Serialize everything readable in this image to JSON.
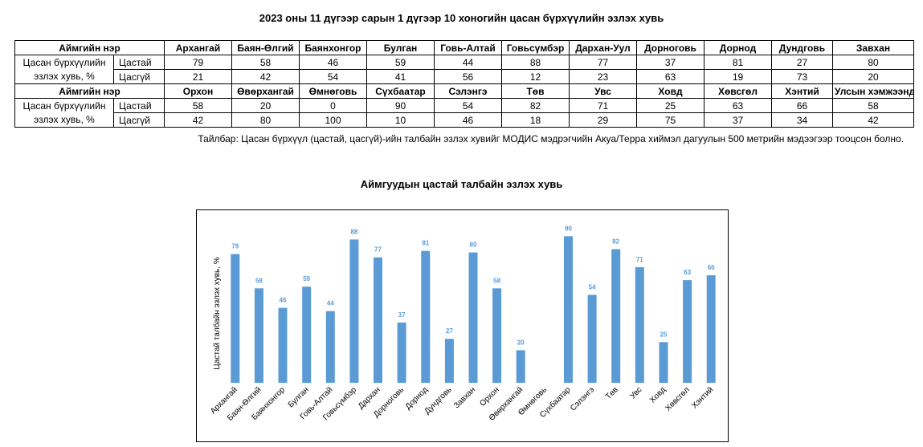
{
  "page_title": "2023 оны 11 дүгээр сарын 1 дүгээр 10 хоногийн цасан бүрхүүлийн эзлэх хувь",
  "table": {
    "header_label": "Аймгийн нэр",
    "row_label_line1": "Цасан бүрхүүлийн",
    "row_label_line2": "эзлэх хувь, %",
    "sub_snow": "Цастай",
    "sub_nosnow": "Цасгүй",
    "block1": {
      "names": [
        "Архангай",
        "Баян-Өлгий",
        "Баянхонгор",
        "Булган",
        "Говь-Алтай",
        "Говьсүмбэр",
        "Дархан-Уул",
        "Дорноговь",
        "Дорнод",
        "Дундговь",
        "Завхан"
      ],
      "snow": [
        "79",
        "58",
        "46",
        "59",
        "44",
        "88",
        "77",
        "37",
        "81",
        "27",
        "80"
      ],
      "nosnow": [
        "21",
        "42",
        "54",
        "41",
        "56",
        "12",
        "23",
        "63",
        "19",
        "73",
        "20"
      ]
    },
    "block2": {
      "names": [
        "Орхон",
        "Өвөрхангай",
        "Өмнөговь",
        "Сүхбаатар",
        "Сэлэнгэ",
        "Төв",
        "Увс",
        "Ховд",
        "Хөвсгөл",
        "Хэнтий",
        "Улсын хэмжээнд"
      ],
      "snow": [
        "58",
        "20",
        "0",
        "90",
        "54",
        "82",
        "71",
        "25",
        "63",
        "66",
        "58"
      ],
      "nosnow": [
        "42",
        "80",
        "100",
        "10",
        "46",
        "18",
        "29",
        "75",
        "37",
        "34",
        "42"
      ]
    }
  },
  "note": "Тайлбар: Цасан бүрхүүл (цастай, цасгүй)-ийн талбайн эзлэх хувийг МОДИС мэдрэгчийн Акуа/Терра хиймэл дагуулын 500 метрийн мэдээгээр тооцсон болно.",
  "chart_data": {
    "type": "bar",
    "title": "Аймгуудын цастай талбайн эзлэх хувь",
    "xlabel": "",
    "ylabel": "Цастай талбайн эзлэх хувь, %",
    "categories": [
      "Архангай",
      "Баян-Өлгий",
      "Баянхонгор",
      "Булган",
      "Говь-Алтай",
      "Говьсүмбэр",
      "Дархан",
      "Дорноговь",
      "Дорнод",
      "Дундговь",
      "Завхан",
      "Орхон",
      "Өвөрхангай",
      "Өмнөговь",
      "Сүхбаатар",
      "Сэлэнгэ",
      "Төв",
      "Увс",
      "Ховд",
      "Хөвсгөл",
      "Хэнтий"
    ],
    "values": [
      79,
      58,
      46,
      59,
      44,
      88,
      77,
      37,
      81,
      27,
      80,
      58,
      20,
      0,
      90,
      54,
      82,
      71,
      25,
      63,
      66
    ],
    "value_labels": [
      "79",
      "58",
      "46",
      "59",
      "44",
      "88",
      "77",
      "37",
      "81",
      "27",
      "80",
      "58",
      "20",
      "",
      "90",
      "54",
      "82",
      "71",
      "25",
      "63",
      "66"
    ],
    "ylim": [
      0,
      100
    ],
    "grid": false,
    "legend": "none",
    "bar_color": "#5B9BD5",
    "label_color": "#5B9BD5"
  }
}
